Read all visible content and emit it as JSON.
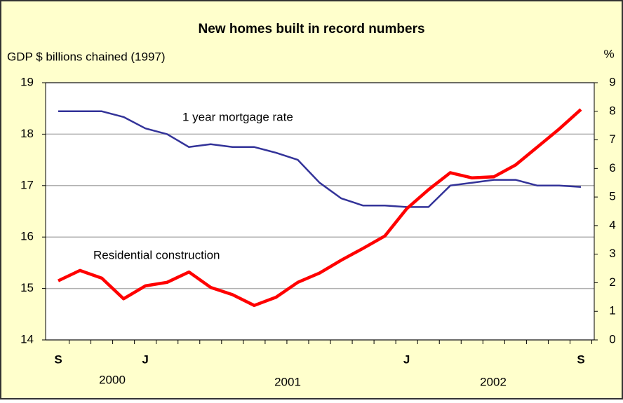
{
  "chart_data": {
    "type": "line",
    "title": "New homes built in record numbers",
    "y_axis_label": "GDP $ billions chained (1997)",
    "y2_axis_label": "%",
    "categories": [
      "S",
      null,
      null,
      null,
      "J",
      null,
      null,
      null,
      null,
      null,
      null,
      null,
      null,
      null,
      null,
      null,
      "J",
      null,
      null,
      null,
      null,
      null,
      null,
      null,
      "S"
    ],
    "year_labels": [
      "2000",
      "2001",
      "2002"
    ],
    "series": [
      {
        "name": "Residential construction",
        "color": "#ff0000",
        "axis": "y",
        "values": [
          15.15,
          15.35,
          15.2,
          14.8,
          15.05,
          15.12,
          15.32,
          15.02,
          14.88,
          14.67,
          14.83,
          15.12,
          15.3,
          15.55,
          15.78,
          16.02,
          16.55,
          16.92,
          17.25,
          17.15,
          17.17,
          17.4,
          17.75,
          18.1,
          18.48
        ]
      },
      {
        "name": "1 year mortgage rate",
        "color": "#333399",
        "axis": "y2",
        "values": [
          8.0,
          8.0,
          8.0,
          7.8,
          7.4,
          7.2,
          6.75,
          6.85,
          6.75,
          6.75,
          6.55,
          6.3,
          5.5,
          4.95,
          4.7,
          4.7,
          4.65,
          4.65,
          5.4,
          5.5,
          5.6,
          5.6,
          5.4,
          5.4,
          5.35
        ]
      }
    ],
    "ylim": [
      14,
      19
    ],
    "yticks": [
      14,
      15,
      16,
      17,
      18,
      19
    ],
    "y2lim": [
      0,
      9
    ],
    "y2ticks": [
      0,
      1,
      2,
      3,
      4,
      5,
      6,
      7,
      8,
      9
    ],
    "grid": true
  }
}
